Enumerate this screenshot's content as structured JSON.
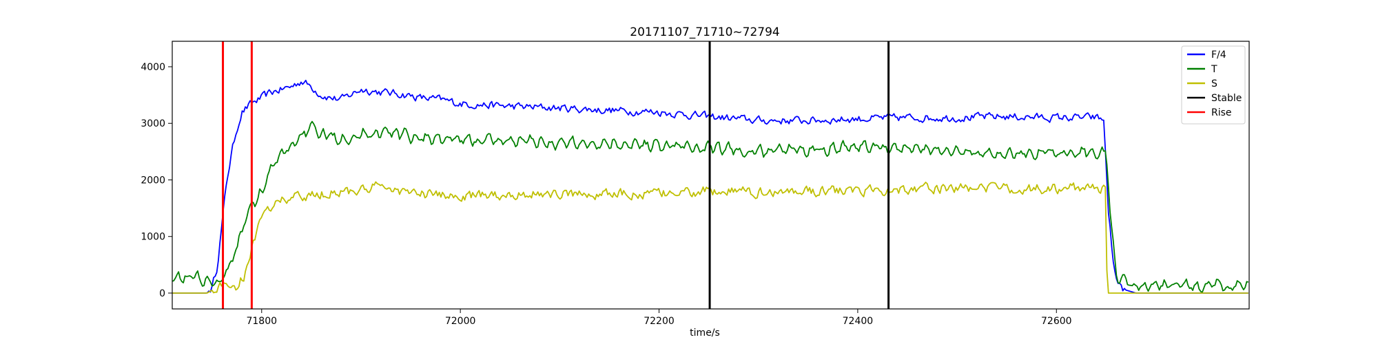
{
  "chart_data": {
    "type": "line",
    "title": "20171107_71710~72794",
    "xlabel": "time/s",
    "ylabel": "",
    "xlim": [
      71710,
      72794
    ],
    "ylim": [
      -280,
      4450
    ],
    "x_ticks": [
      71800,
      72000,
      72200,
      72400,
      72600
    ],
    "y_ticks": [
      0,
      1000,
      2000,
      3000,
      4000
    ],
    "grid": false,
    "legend_position": "top-right",
    "series": [
      {
        "name": "F/4",
        "color": "#0000ff",
        "points": [
          [
            71710,
            0
          ],
          [
            71745,
            0
          ],
          [
            71750,
            100
          ],
          [
            71755,
            450
          ],
          [
            71760,
            1200
          ],
          [
            71765,
            2000
          ],
          [
            71770,
            2500
          ],
          [
            71775,
            2900
          ],
          [
            71780,
            3200
          ],
          [
            71790,
            3350
          ],
          [
            71800,
            3450
          ],
          [
            71810,
            3550
          ],
          [
            71820,
            3600
          ],
          [
            71830,
            3650
          ],
          [
            71840,
            3750
          ],
          [
            71850,
            3650
          ],
          [
            71860,
            3500
          ],
          [
            71870,
            3450
          ],
          [
            71880,
            3420
          ],
          [
            71900,
            3600
          ],
          [
            71920,
            3550
          ],
          [
            71940,
            3520
          ],
          [
            71960,
            3450
          ],
          [
            71980,
            3420
          ],
          [
            72000,
            3350
          ],
          [
            72050,
            3300
          ],
          [
            72100,
            3270
          ],
          [
            72150,
            3230
          ],
          [
            72200,
            3200
          ],
          [
            72250,
            3120
          ],
          [
            72300,
            3050
          ],
          [
            72350,
            3050
          ],
          [
            72400,
            3080
          ],
          [
            72450,
            3100
          ],
          [
            72500,
            3100
          ],
          [
            72550,
            3120
          ],
          [
            72600,
            3100
          ],
          [
            72640,
            3100
          ],
          [
            72648,
            3050
          ],
          [
            72652,
            1500
          ],
          [
            72658,
            400
          ],
          [
            72665,
            80
          ],
          [
            72680,
            0
          ],
          [
            72794,
            0
          ]
        ],
        "noise": 110
      },
      {
        "name": "T",
        "color": "#008000",
        "points": [
          [
            71710,
            320
          ],
          [
            71740,
            260
          ],
          [
            71750,
            200
          ],
          [
            71755,
            150
          ],
          [
            71765,
            350
          ],
          [
            71775,
            800
          ],
          [
            71785,
            1400
          ],
          [
            71800,
            1800
          ],
          [
            71810,
            2200
          ],
          [
            71820,
            2450
          ],
          [
            71830,
            2600
          ],
          [
            71840,
            2800
          ],
          [
            71850,
            2900
          ],
          [
            71860,
            2800
          ],
          [
            71880,
            2750
          ],
          [
            71900,
            2800
          ],
          [
            71920,
            2850
          ],
          [
            71940,
            2800
          ],
          [
            71960,
            2750
          ],
          [
            72000,
            2700
          ],
          [
            72050,
            2700
          ],
          [
            72100,
            2650
          ],
          [
            72150,
            2650
          ],
          [
            72200,
            2620
          ],
          [
            72250,
            2550
          ],
          [
            72300,
            2500
          ],
          [
            72350,
            2550
          ],
          [
            72400,
            2600
          ],
          [
            72450,
            2550
          ],
          [
            72500,
            2500
          ],
          [
            72550,
            2450
          ],
          [
            72600,
            2500
          ],
          [
            72640,
            2500
          ],
          [
            72650,
            2450
          ],
          [
            72655,
            1200
          ],
          [
            72660,
            300
          ],
          [
            72670,
            150
          ],
          [
            72700,
            130
          ],
          [
            72760,
            120
          ],
          [
            72794,
            100
          ]
        ],
        "noise": 110
      },
      {
        "name": "S",
        "color": "#bfbf00",
        "points": [
          [
            71710,
            0
          ],
          [
            71745,
            0
          ],
          [
            71755,
            100
          ],
          [
            71765,
            150
          ],
          [
            71775,
            120
          ],
          [
            71782,
            300
          ],
          [
            71790,
            800
          ],
          [
            71800,
            1300
          ],
          [
            71810,
            1550
          ],
          [
            71820,
            1650
          ],
          [
            71840,
            1700
          ],
          [
            71860,
            1750
          ],
          [
            71880,
            1800
          ],
          [
            71900,
            1800
          ],
          [
            71920,
            1900
          ],
          [
            71940,
            1800
          ],
          [
            71960,
            1750
          ],
          [
            72000,
            1700
          ],
          [
            72050,
            1750
          ],
          [
            72100,
            1750
          ],
          [
            72150,
            1750
          ],
          [
            72200,
            1750
          ],
          [
            72250,
            1800
          ],
          [
            72300,
            1780
          ],
          [
            72350,
            1800
          ],
          [
            72400,
            1800
          ],
          [
            72450,
            1850
          ],
          [
            72500,
            1850
          ],
          [
            72550,
            1850
          ],
          [
            72600,
            1850
          ],
          [
            72645,
            1850
          ],
          [
            72650,
            1850
          ],
          [
            72651,
            0
          ],
          [
            72794,
            0
          ]
        ],
        "noise": 140
      }
    ],
    "vertical_lines": [
      {
        "name": "Rise",
        "color": "#ff0000",
        "x": [
          71761,
          71790
        ]
      },
      {
        "name": "Stable",
        "color": "#000000",
        "x": [
          72251,
          72431
        ]
      }
    ],
    "legend": [
      {
        "label": "F/4",
        "color": "#0000ff"
      },
      {
        "label": "T",
        "color": "#008000"
      },
      {
        "label": "S",
        "color": "#bfbf00"
      },
      {
        "label": "Stable",
        "color": "#000000"
      },
      {
        "label": "Rise",
        "color": "#ff0000"
      }
    ]
  }
}
